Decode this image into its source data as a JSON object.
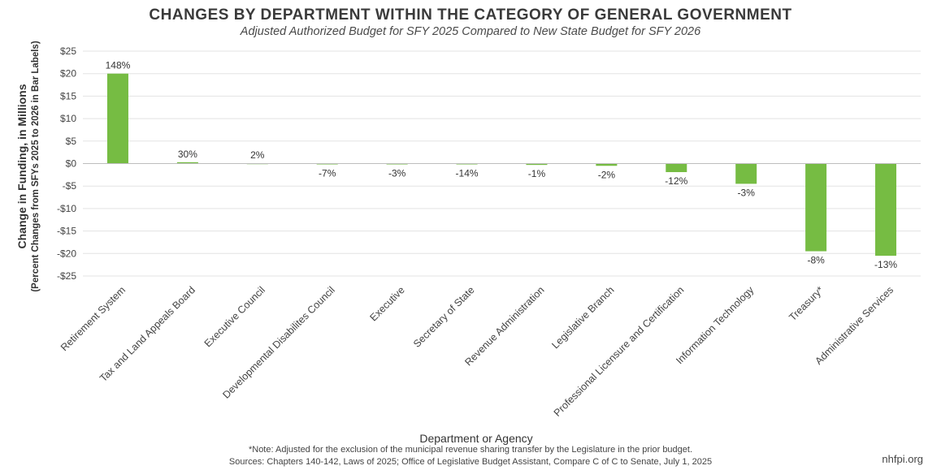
{
  "chart_data": {
    "type": "bar",
    "title": "CHANGES BY DEPARTMENT WITHIN THE CATEGORY OF GENERAL GOVERNMENT",
    "subtitle": "Adjusted Authorized Budget for SFY 2025 Compared to New State Budget for SFY 2026",
    "xlabel": "Department or Agency",
    "ylabel": "Change in Funding, in Millions",
    "ylabel_sub": "(Percent Changes from SFYs 2025 to 2026 in Bar Labels)",
    "ylim": [
      -25,
      25
    ],
    "yticks": [
      25,
      20,
      15,
      10,
      5,
      0,
      -5,
      -10,
      -15,
      -20,
      -25
    ],
    "ytick_labels": [
      "$25",
      "$20",
      "$15",
      "$10",
      "$5",
      "$0",
      "-$5",
      "-$10",
      "-$15",
      "-$20",
      "-$25"
    ],
    "grid": true,
    "bar_color": "#76bc43",
    "categories": [
      "Retirement System",
      "Tax and Land Appeals Board",
      "Executive Council",
      "Developmental Disabilites Council",
      "Executive",
      "Secretary of State",
      "Revenue Administration",
      "Legislative Branch",
      "Professional Licensure and Certification",
      "Information Technology",
      "Treasury*",
      "Administrative Services"
    ],
    "values": [
      20.0,
      0.3,
      0.05,
      -0.05,
      -0.05,
      -0.1,
      -0.3,
      -0.5,
      -1.9,
      -4.5,
      -19.5,
      -20.5
    ],
    "bar_labels": [
      "148%",
      "30%",
      "2%",
      "-7%",
      "-3%",
      "-14%",
      "-1%",
      "-2%",
      "-12%",
      "-3%",
      "-8%",
      "-13%"
    ]
  },
  "footer": {
    "note": "*Note: Adjusted for the exclusion of the municipal revenue sharing transfer by the Legislature in the prior budget.",
    "sources": "Sources: Chapters 140-142, Laws of 2025; Office of Legislative Budget Assistant, Compare C of C to Senate, July 1, 2025",
    "brand": "nhfpi.org"
  }
}
